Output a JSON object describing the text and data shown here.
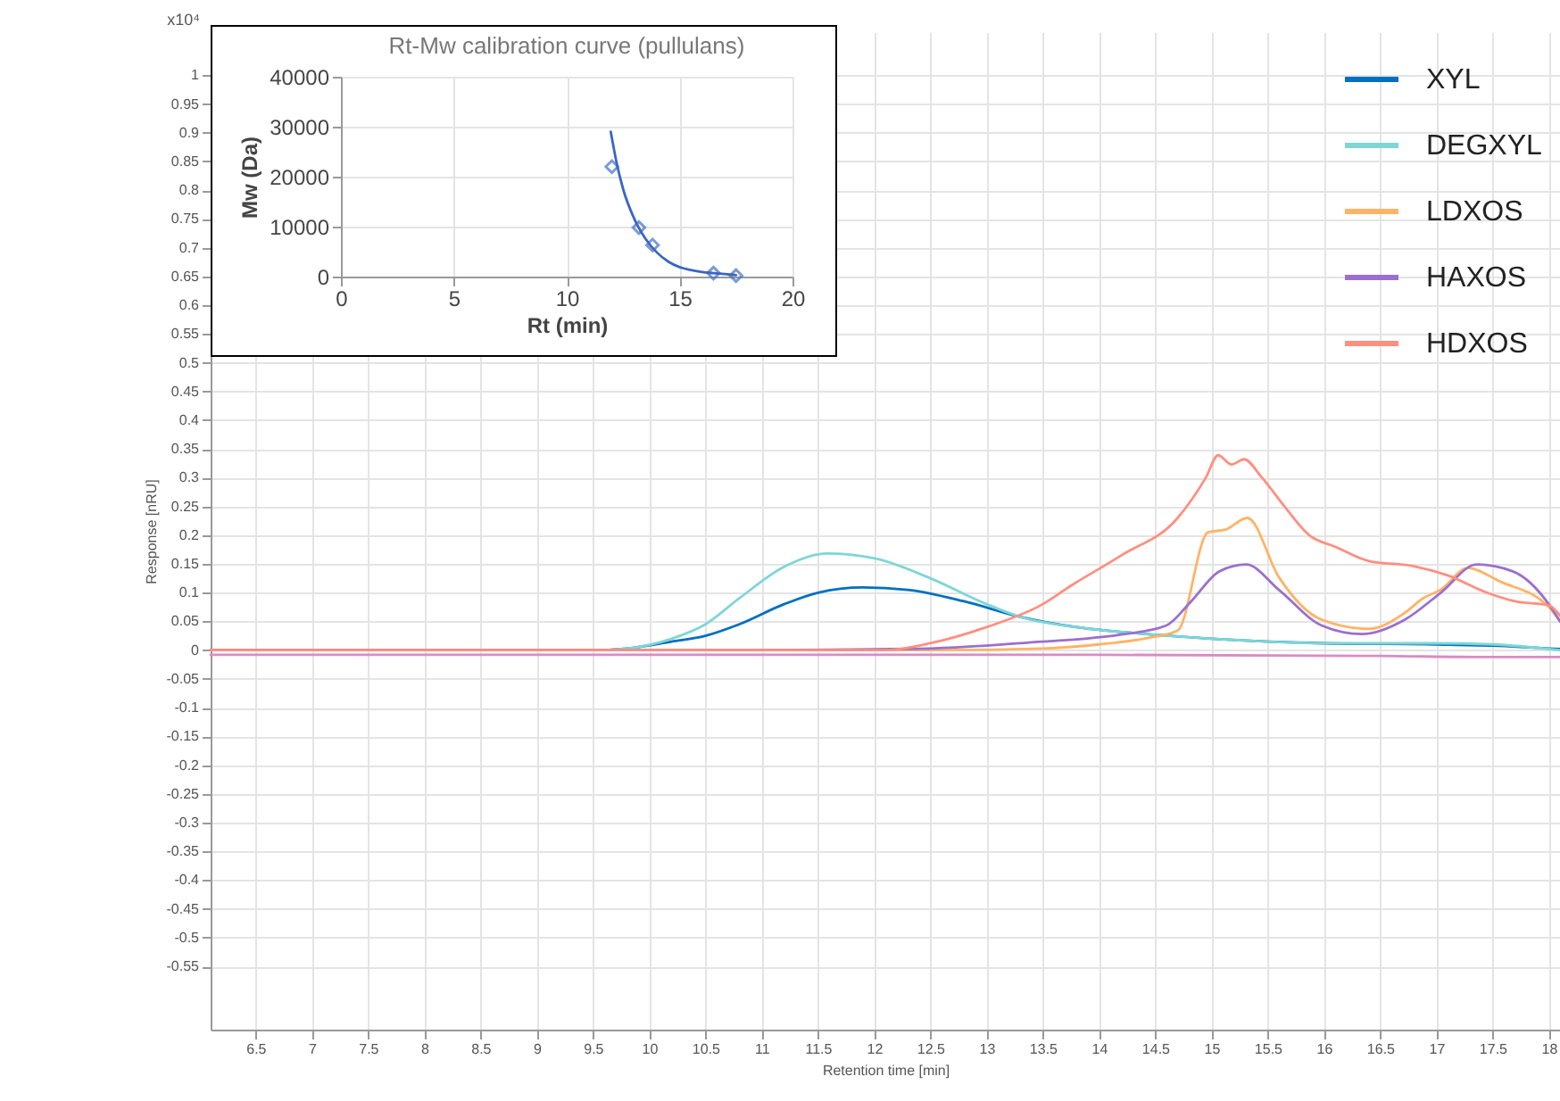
{
  "chart_data": [
    {
      "type": "line",
      "xlabel": "Retention time [min]",
      "ylabel": "Response [nRU]",
      "annotations": [
        "x10⁴"
      ],
      "xlim": [
        6.1,
        18.1
      ],
      "ylim": [
        -0.66,
        1.075
      ],
      "xticks": [
        6.5,
        7,
        7.5,
        8,
        8.5,
        9,
        9.5,
        10,
        10.5,
        11,
        11.5,
        12,
        12.5,
        13,
        13.5,
        14,
        14.5,
        15,
        15.5,
        16,
        16.5,
        17,
        17.5,
        18
      ],
      "yticks": [
        -0.55,
        -0.5,
        -0.45,
        -0.4,
        -0.35,
        -0.3,
        -0.25,
        -0.2,
        -0.15,
        -0.1,
        -0.05,
        0,
        0.05,
        0.1,
        0.15,
        0.2,
        0.25,
        0.3,
        0.35,
        0.4,
        0.45,
        0.5,
        0.55,
        0.6,
        0.65,
        0.7,
        0.75,
        0.8,
        0.85,
        0.9,
        0.95,
        1
      ],
      "grid": true,
      "legend": "top right",
      "series": [
        {
          "name": "XYL",
          "color": "#0070c0",
          "x": [
            6.1,
            9.5,
            9.8,
            10.2,
            10.5,
            10.8,
            11.2,
            11.5,
            11.9,
            12.3,
            12.8,
            13.3,
            13.8,
            14.3,
            15,
            16,
            17,
            17.5,
            18.1
          ],
          "values": [
            0,
            0,
            0.003,
            0.015,
            0.025,
            0.045,
            0.08,
            0.1,
            0.109,
            0.105,
            0.085,
            0.058,
            0.04,
            0.03,
            0.02,
            0.012,
            0.01,
            0.008,
            0.002
          ]
        },
        {
          "name": "DEGXYL",
          "color": "#7fd6d6",
          "x": [
            6.1,
            9.5,
            9.8,
            10.2,
            10.5,
            10.8,
            11.2,
            11.58,
            12,
            12.5,
            13,
            13.3,
            13.8,
            14.3,
            15,
            16,
            17,
            17.5,
            18.1
          ],
          "values": [
            0,
            0,
            0.003,
            0.02,
            0.045,
            0.09,
            0.145,
            0.168,
            0.16,
            0.125,
            0.08,
            0.058,
            0.04,
            0.03,
            0.02,
            0.012,
            0.012,
            0.01,
            0
          ]
        },
        {
          "name": "LDXOS",
          "color": "#ffb366",
          "x": [
            6.1,
            12.5,
            13.5,
            14,
            14.4,
            14.7,
            14.97,
            15.13,
            15.32,
            15.6,
            15.98,
            16.4,
            16.72,
            16.88,
            17.04,
            17.28,
            17.56,
            18,
            18.1
          ],
          "values": [
            0,
            0,
            0.003,
            0.01,
            0.02,
            0.034,
            0.205,
            0.21,
            0.23,
            0.127,
            0.053,
            0.037,
            0.065,
            0.09,
            0.105,
            0.143,
            0.12,
            0.075,
            0.05
          ]
        },
        {
          "name": "HAXOS",
          "color": "#9b6fcf",
          "x": [
            6.1,
            11,
            12.5,
            13,
            13.5,
            13.75,
            14.23,
            14.6,
            14.82,
            15.07,
            15.31,
            15.6,
            15.98,
            16.34,
            16.72,
            17.04,
            17.36,
            17.68,
            18,
            18.1
          ],
          "values": [
            0,
            0,
            0.003,
            0.008,
            0.015,
            0.018,
            0.028,
            0.043,
            0.085,
            0.137,
            0.149,
            0.105,
            0.043,
            0.028,
            0.053,
            0.1,
            0.149,
            0.137,
            0.08,
            0.05
          ]
        },
        {
          "name": "HDXOS",
          "color": "#ff8f80",
          "x": [
            6.1,
            12.1,
            12.5,
            13,
            13.5,
            13.75,
            14.2,
            14.7,
            14.95,
            15.06,
            15.18,
            15.29,
            15.45,
            15.65,
            15.87,
            16.1,
            16.4,
            16.8,
            17.1,
            17.45,
            17.7,
            18,
            18.1
          ],
          "values": [
            0,
            0,
            0.012,
            0.04,
            0.08,
            0.112,
            0.165,
            0.23,
            0.3,
            0.339,
            0.323,
            0.332,
            0.3,
            0.25,
            0.2,
            0.18,
            0.155,
            0.146,
            0.13,
            0.1,
            0.085,
            0.078,
            0.06
          ]
        },
        {
          "color": "#d98cc4",
          "x": [
            6.1,
            10,
            14,
            16.5,
            17.5,
            18.1
          ],
          "values": [
            -0.008,
            -0.008,
            -0.008,
            -0.01,
            -0.012,
            -0.012
          ]
        }
      ]
    },
    {
      "type": "scatter",
      "title": "Rt-Mw calibration curve (pullulans)",
      "xlabel": "Rt (min)",
      "ylabel": "Mw (Da)",
      "xlim": [
        0,
        20
      ],
      "ylim": [
        0,
        40000
      ],
      "xticks": [
        0,
        5,
        10,
        15,
        20
      ],
      "yticks": [
        0,
        10000,
        20000,
        30000,
        40000
      ],
      "grid": true,
      "series": [
        {
          "marker": "diamond",
          "color": "#4472c4",
          "x": [
            12,
            13.2,
            13.8,
            16.5,
            17.5
          ],
          "values": [
            22000,
            9800,
            6300,
            700,
            200
          ]
        },
        {
          "type": "line",
          "marker": "none",
          "color": "#3a66c4",
          "x": [
            11.95,
            12.2,
            12.5,
            13,
            13.5,
            14,
            14.5,
            15,
            15.5,
            16,
            16.5,
            17,
            17.5
          ],
          "values": [
            29000,
            23000,
            17500,
            11500,
            7500,
            4800,
            3000,
            1900,
            1300,
            900,
            700,
            500,
            300
          ]
        }
      ]
    }
  ]
}
